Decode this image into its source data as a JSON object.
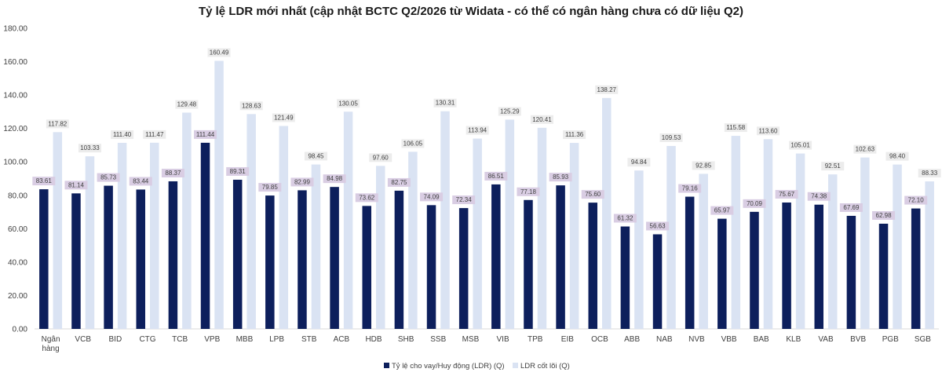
{
  "chart_data": {
    "type": "bar",
    "title": "Tỷ lệ LDR mới nhất (cập nhật BCTC Q2/2026 từ Widata - có thể có ngân hàng chưa có dữ liệu Q2)",
    "xlabel": "",
    "ylabel": "",
    "ylim": [
      0,
      180
    ],
    "yticks": [
      "0.00",
      "20.00",
      "40.00",
      "60.00",
      "80.00",
      "100.00",
      "120.00",
      "140.00",
      "160.00",
      "180.00"
    ],
    "grid": false,
    "legend_position": "bottom",
    "categories": [
      "Ngân hàng",
      "VCB",
      "BID",
      "CTG",
      "TCB",
      "VPB",
      "MBB",
      "LPB",
      "STB",
      "ACB",
      "HDB",
      "SHB",
      "SSB",
      "MSB",
      "VIB",
      "TPB",
      "EIB",
      "OCB",
      "ABB",
      "NAB",
      "NVB",
      "VBB",
      "BAB",
      "KLB",
      "VAB",
      "BVB",
      "PGB",
      "SGB"
    ],
    "series": [
      {
        "name": "Tỷ lệ cho vay/Huy động (LDR) (Q)",
        "color": "#0d1f5c",
        "label_bg": "#d9cde3",
        "values": [
          83.61,
          81.14,
          85.73,
          83.44,
          88.37,
          111.44,
          89.31,
          79.85,
          82.99,
          84.98,
          73.62,
          82.75,
          74.09,
          72.34,
          86.51,
          77.18,
          85.93,
          75.6,
          61.32,
          56.63,
          79.16,
          65.97,
          70.09,
          75.67,
          74.38,
          67.69,
          62.98,
          72.1
        ]
      },
      {
        "name": "LDR cốt lõi (Q)",
        "color": "#dae3f3",
        "label_bg": "#ececec",
        "values": [
          117.82,
          103.33,
          111.4,
          111.47,
          129.48,
          160.49,
          128.63,
          121.49,
          98.45,
          130.05,
          97.6,
          106.05,
          130.31,
          113.94,
          125.29,
          120.41,
          111.36,
          138.27,
          94.84,
          109.53,
          92.85,
          115.58,
          113.6,
          105.01,
          92.51,
          102.63,
          98.4,
          88.33
        ]
      }
    ]
  }
}
